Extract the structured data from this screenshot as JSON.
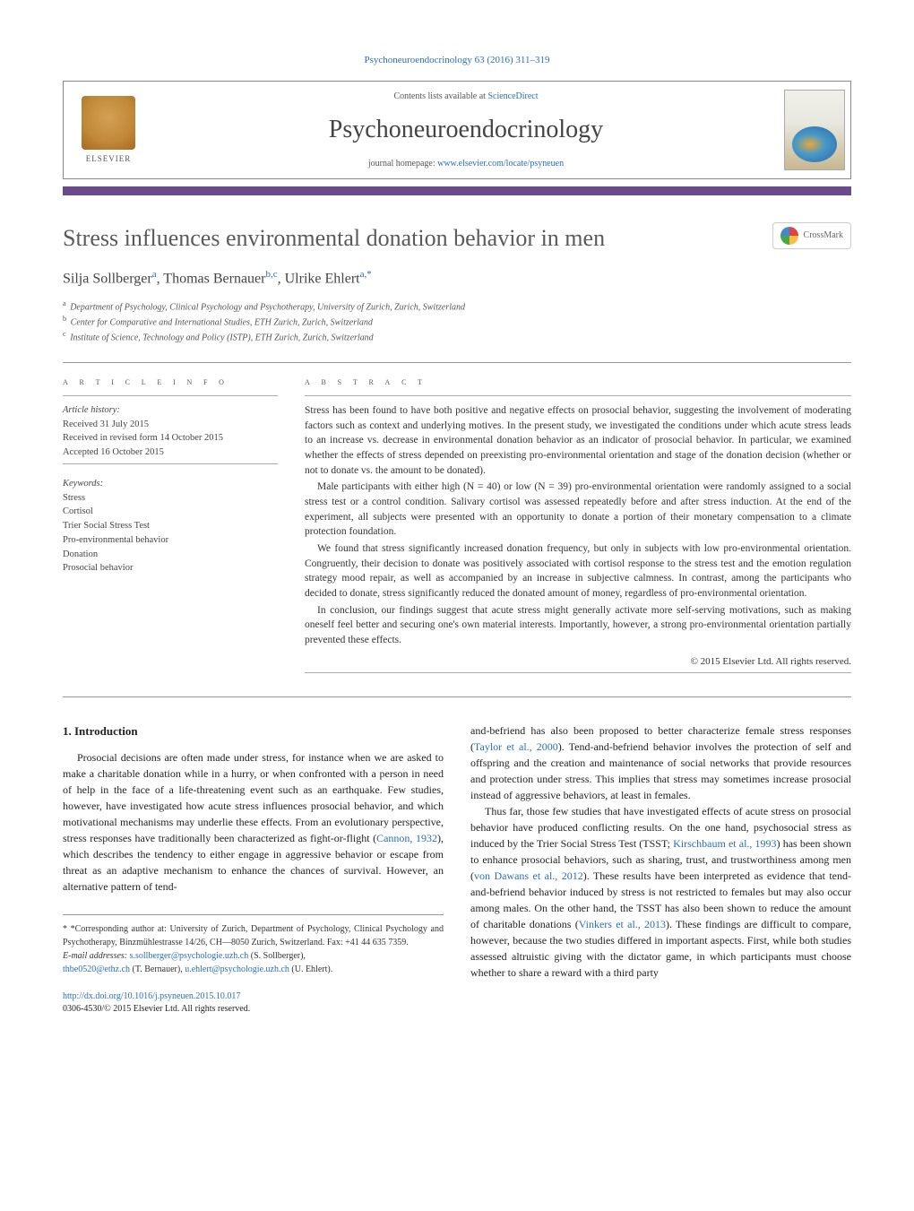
{
  "header": {
    "journal_ref": "Psychoneuroendocrinology 63 (2016) 311–319",
    "contents_prefix": "Contents lists available at ",
    "contents_link": "ScienceDirect",
    "journal_name": "Psychoneuroendocrinology",
    "homepage_prefix": "journal homepage: ",
    "homepage_link": "www.elsevier.com/locate/psyneuen",
    "elsevier": "ELSEVIER"
  },
  "crossmark": "CrossMark",
  "title": "Stress influences environmental donation behavior in men",
  "authors_html": "Silja Sollberger<sup>a</sup>, Thomas Bernauer<sup>b,c</sup>, Ulrike Ehlert<sup>a,*</sup>",
  "affiliations": {
    "a": "Department of Psychology, Clinical Psychology and Psychotherapy, University of Zurich, Zurich, Switzerland",
    "b": "Center for Comparative and International Studies, ETH Zurich, Zurich, Switzerland",
    "c": "Institute of Science, Technology and Policy (ISTP), ETH Zurich, Zurich, Switzerland"
  },
  "info": {
    "section_label": "a r t i c l e   i n f o",
    "history_label": "Article history:",
    "received": "Received 31 July 2015",
    "revised": "Received in revised form 14 October 2015",
    "accepted": "Accepted 16 October 2015",
    "keywords_label": "Keywords:",
    "keywords": [
      "Stress",
      "Cortisol",
      "Trier Social Stress Test",
      "Pro-environmental behavior",
      "Donation",
      "Prosocial behavior"
    ]
  },
  "abstract": {
    "section_label": "a b s t r a c t",
    "p1": "Stress has been found to have both positive and negative effects on prosocial behavior, suggesting the involvement of moderating factors such as context and underlying motives. In the present study, we investigated the conditions under which acute stress leads to an increase vs. decrease in environmental donation behavior as an indicator of prosocial behavior. In particular, we examined whether the effects of stress depended on preexisting pro-environmental orientation and stage of the donation decision (whether or not to donate vs. the amount to be donated).",
    "p2": "Male participants with either high (N = 40) or low (N = 39) pro-environmental orientation were randomly assigned to a social stress test or a control condition. Salivary cortisol was assessed repeatedly before and after stress induction. At the end of the experiment, all subjects were presented with an opportunity to donate a portion of their monetary compensation to a climate protection foundation.",
    "p3": "We found that stress significantly increased donation frequency, but only in subjects with low pro-environmental orientation. Congruently, their decision to donate was positively associated with cortisol response to the stress test and the emotion regulation strategy mood repair, as well as accompanied by an increase in subjective calmness. In contrast, among the participants who decided to donate, stress significantly reduced the donated amount of money, regardless of pro-environmental orientation.",
    "p4": "In conclusion, our findings suggest that acute stress might generally activate more self-serving motivations, such as making oneself feel better and securing one's own material interests. Importantly, however, a strong pro-environmental orientation partially prevented these effects.",
    "copyright": "© 2015 Elsevier Ltd. All rights reserved."
  },
  "body": {
    "intro_heading": "1.  Introduction",
    "left_p1_a": "Prosocial decisions are often made under stress, for instance when we are asked to make a charitable donation while in a hurry, or when confronted with a person in need of help in the face of a life-threatening event such as an earthquake. Few studies, however, have investigated how acute stress influences prosocial behavior, and which motivational mechanisms may underlie these effects. From an evolutionary perspective, stress responses have traditionally been characterized as fight-or-flight (",
    "left_cite1": "Cannon, 1932",
    "left_p1_b": "), which describes the tendency to either engage in aggressive behavior or escape from threat as an adaptive mechanism to enhance the chances of survival. However, an alternative pattern of tend-",
    "right_p1_a": "and-befriend has also been proposed to better characterize female stress responses (",
    "right_cite1": "Taylor et al., 2000",
    "right_p1_b": "). Tend-and-befriend behavior involves the protection of self and offspring and the creation and maintenance of social networks that provide resources and protection under stress. This implies that stress may sometimes increase prosocial instead of aggressive behaviors, at least in females.",
    "right_p2_a": "Thus far, those few studies that have investigated effects of acute stress on prosocial behavior have produced conflicting results. On the one hand, psychosocial stress as induced by the Trier Social Stress Test (TSST; ",
    "right_cite2": "Kirschbaum et al., 1993",
    "right_p2_b": ") has been shown to enhance prosocial behaviors, such as sharing, trust, and trustworthiness among men (",
    "right_cite3": "von Dawans et al., 2012",
    "right_p2_c": "). These results have been interpreted as evidence that tend-and-befriend behavior induced by stress is not restricted to females but may also occur among males. On the other hand, the TSST has also been shown to reduce the amount of charitable donations (",
    "right_cite4": "Vinkers et al., 2013",
    "right_p2_d": "). These findings are difficult to compare, however, because the two studies differed in important aspects. First, while both studies assessed altruistic giving with the dictator game, in which participants must choose whether to share a reward with a third party"
  },
  "footnotes": {
    "corr": "* *Corresponding author at: University of Zurich, Department of Psychology, Clinical Psychology and Psychotherapy, Binzmühlestrasse 14/26, CH—8050 Zurich, Switzerland. Fax: +41 44 635 7359.",
    "email_label": "E-mail addresses: ",
    "email1": "s.sollberger@psychologie.uzh.ch",
    "name1": " (S. Sollberger), ",
    "email2": "thbe0520@ethz.ch",
    "name2": " (T. Bernauer), ",
    "email3": "u.ehlert@psychologie.uzh.ch",
    "name3": " (U. Ehlert)."
  },
  "doi": {
    "link": "http://dx.doi.org/10.1016/j.psyneuen.2015.10.017",
    "issn": "0306-4530/© 2015 Elsevier Ltd. All rights reserved."
  },
  "colors": {
    "link": "#2a6ebb",
    "bar": "#6a4a8a",
    "text": "#333333",
    "rule": "#999999"
  }
}
